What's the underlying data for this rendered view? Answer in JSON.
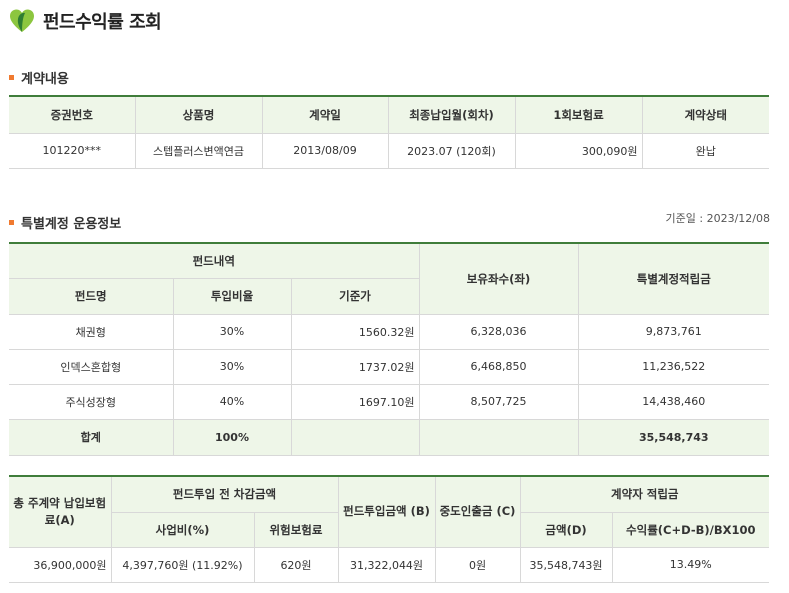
{
  "page": {
    "title": "펀드수익률 조회"
  },
  "contract_section": {
    "title": "계약내용",
    "headers": [
      "증권번호",
      "상품명",
      "계약일",
      "최종납입월(회차)",
      "1회보험료",
      "계약상태"
    ],
    "row": [
      "101220***",
      "스텝플러스변액연금",
      "2013/08/09",
      "2023.07 (120회)",
      "300,090원",
      "완납"
    ]
  },
  "special_account_section": {
    "title": "특별계정 운용정보",
    "reference_date": "기준일 : 2023/12/08",
    "header_group": "펀드내역",
    "headers": {
      "fund_name": "펀드명",
      "ratio": "투입비율",
      "base_price": "기준가",
      "units": "보유좌수(좌)",
      "reserve": "특별계정적립금"
    },
    "rows": [
      {
        "fund_name": "채권형",
        "ratio": "30%",
        "base_price": "1560.32원",
        "units": "6,328,036",
        "reserve": "9,873,761"
      },
      {
        "fund_name": "인덱스혼합형",
        "ratio": "30%",
        "base_price": "1737.02원",
        "units": "6,468,850",
        "reserve": "11,236,522"
      },
      {
        "fund_name": "주식성장형",
        "ratio": "40%",
        "base_price": "1697.10원",
        "units": "8,507,725",
        "reserve": "14,438,460"
      }
    ],
    "total": {
      "label": "합계",
      "ratio": "100%",
      "reserve": "35,548,743"
    }
  },
  "summary_section": {
    "headers": {
      "total_premium": "총 주계약 납입보험료(A)",
      "deduction_group": "펀드투입 전 차감금액",
      "business_cost": "사업비(%)",
      "risk_premium": "위험보험료",
      "fund_input": "펀드투입금액 (B)",
      "withdrawal": "중도인출금 (C)",
      "contractor_group": "계약자 적립금",
      "amount": "금액(D)",
      "return_rate": "수익률(C+D-B)/BX100"
    },
    "row": {
      "total_premium": "36,900,000원",
      "business_cost": "4,397,760원 (11.92%)",
      "risk_premium": "620원",
      "fund_input": "31,322,044원",
      "withdrawal": "0원",
      "amount": "35,548,743원",
      "return_rate": "13.49%"
    }
  },
  "colors": {
    "accent_green": "#3f7d3a",
    "header_bg": "#eef6e8",
    "bullet_orange": "#f07a30"
  }
}
